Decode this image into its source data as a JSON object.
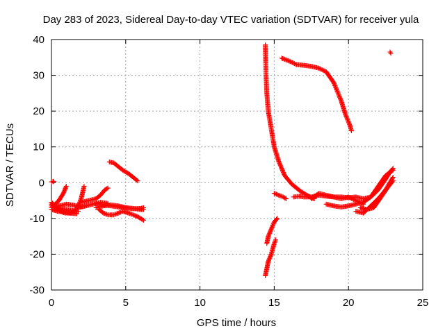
{
  "chart_data": {
    "type": "scatter",
    "title": "Day 283 of 2023, Sidereal Day-to-day VTEC variation (SDTVAR) for receiver yula",
    "xlabel": "GPS time / hours",
    "ylabel": "SDTVAR / TECUs",
    "xlim": [
      0,
      25
    ],
    "ylim": [
      -30,
      40
    ],
    "xticks": [
      "0",
      "5",
      "10",
      "15",
      "20",
      "25"
    ],
    "yticks": [
      "-30",
      "-20",
      "-10",
      "0",
      "10",
      "20",
      "30",
      "40"
    ],
    "grid": true,
    "marker": "+",
    "color": "#ff0000",
    "series": [
      {
        "segments": [
          [
            [
              0.0,
              -5.5
            ],
            [
              0.2,
              -6.2
            ],
            [
              0.5,
              -5.0
            ],
            [
              0.8,
              -3.0
            ],
            [
              1.0,
              -1.0
            ]
          ],
          [
            [
              0.0,
              -6.5
            ],
            [
              0.5,
              -7.2
            ],
            [
              1.0,
              -7.5
            ],
            [
              1.5,
              -7.8
            ],
            [
              1.8,
              -8.0
            ]
          ],
          [
            [
              0.0,
              -7.5
            ],
            [
              0.4,
              -8.0
            ],
            [
              0.8,
              -8.2
            ],
            [
              1.2,
              -8.5
            ],
            [
              1.7,
              -8.7
            ]
          ],
          [
            [
              0.0,
              -6.0
            ],
            [
              0.3,
              -7.0
            ],
            [
              0.6,
              -8.0
            ],
            [
              0.9,
              -8.5
            ],
            [
              1.3,
              -8.5
            ],
            [
              1.6,
              -7.8
            ],
            [
              1.8,
              -6.5
            ],
            [
              2.0,
              -4.5
            ],
            [
              2.2,
              -1.0
            ]
          ],
          [
            [
              0.0,
              -7.0
            ],
            [
              0.5,
              -6.5
            ],
            [
              1.0,
              -6.0
            ],
            [
              1.5,
              -6.3
            ],
            [
              2.0,
              -6.8
            ],
            [
              2.3,
              -6.5
            ]
          ],
          [
            [
              2.0,
              -5.5
            ],
            [
              2.5,
              -5.0
            ],
            [
              3.0,
              -4.5
            ],
            [
              3.3,
              -3.5
            ],
            [
              3.6,
              -2.0
            ],
            [
              3.8,
              -1.5
            ]
          ],
          [
            [
              1.8,
              -7.0
            ],
            [
              2.3,
              -6.5
            ],
            [
              2.8,
              -6.0
            ],
            [
              3.3,
              -5.5
            ],
            [
              3.8,
              -5.8
            ]
          ],
          [
            [
              0.0,
              0.2
            ],
            [
              0.1,
              0.4
            ],
            [
              0.15,
              0.3
            ]
          ],
          [
            [
              3.0,
              -7.0
            ],
            [
              3.5,
              -6.5
            ],
            [
              4.0,
              -6.2
            ],
            [
              4.5,
              -6.5
            ],
            [
              5.0,
              -7.0
            ],
            [
              5.5,
              -7.3
            ],
            [
              6.0,
              -7.2
            ],
            [
              6.2,
              -7.0
            ]
          ],
          [
            [
              3.0,
              -6.0
            ],
            [
              3.5,
              -6.2
            ],
            [
              4.0,
              -6.5
            ],
            [
              4.5,
              -6.8
            ],
            [
              5.0,
              -7.0
            ],
            [
              5.5,
              -7.2
            ],
            [
              6.0,
              -7.5
            ],
            [
              6.2,
              -7.5
            ]
          ],
          [
            [
              3.2,
              -7.5
            ],
            [
              3.5,
              -8.5
            ],
            [
              3.8,
              -9.0
            ],
            [
              4.2,
              -9.0
            ],
            [
              4.5,
              -8.5
            ],
            [
              4.8,
              -8.0
            ],
            [
              5.2,
              -8.5
            ],
            [
              5.5,
              -9.0
            ],
            [
              5.8,
              -9.5
            ],
            [
              6.2,
              -10.5
            ]
          ],
          [
            [
              3.9,
              5.8
            ],
            [
              4.2,
              5.5
            ],
            [
              4.5,
              4.5
            ],
            [
              4.8,
              3.5
            ],
            [
              5.2,
              2.5
            ],
            [
              5.5,
              1.5
            ],
            [
              5.8,
              0.5
            ]
          ],
          [
            [
              14.4,
              38.5
            ],
            [
              14.45,
              30.0
            ],
            [
              14.5,
              25.0
            ],
            [
              14.6,
              20.0
            ],
            [
              14.8,
              15.0
            ],
            [
              15.0,
              10.0
            ],
            [
              15.3,
              6.0
            ],
            [
              15.7,
              2.0
            ],
            [
              16.2,
              -0.5
            ],
            [
              16.8,
              -2.5
            ],
            [
              17.2,
              -3.5
            ],
            [
              17.5,
              -4.2
            ],
            [
              17.7,
              -4.5
            ]
          ],
          [
            [
              14.5,
              -17.0
            ],
            [
              14.6,
              -15.0
            ],
            [
              14.8,
              -13.0
            ],
            [
              15.0,
              -11.0
            ],
            [
              15.2,
              -10.0
            ]
          ],
          [
            [
              14.4,
              -26.0
            ],
            [
              14.5,
              -24.0
            ],
            [
              14.6,
              -22.0
            ],
            [
              14.8,
              -20.0
            ],
            [
              15.0,
              -17.0
            ],
            [
              15.1,
              -16.0
            ]
          ],
          [
            [
              15.5,
              34.8
            ],
            [
              16.0,
              34.0
            ],
            [
              16.5,
              33.0
            ],
            [
              17.0,
              32.8
            ],
            [
              17.5,
              32.5
            ],
            [
              18.0,
              32.0
            ],
            [
              18.5,
              31.0
            ],
            [
              19.0,
              28.0
            ],
            [
              19.5,
              23.0
            ],
            [
              19.8,
              19.0
            ],
            [
              20.1,
              16.0
            ],
            [
              20.2,
              14.5
            ]
          ],
          [
            [
              15.0,
              -3.0
            ],
            [
              15.3,
              -3.5
            ],
            [
              15.6,
              -4.0
            ],
            [
              15.8,
              -4.5
            ]
          ],
          [
            [
              16.3,
              -4.0
            ],
            [
              16.7,
              -3.8
            ],
            [
              17.0,
              -4.0
            ],
            [
              17.5,
              -4.0
            ],
            [
              18.0,
              -3.5
            ],
            [
              18.5,
              -3.8
            ],
            [
              19.0,
              -4.0
            ],
            [
              19.5,
              -4.0
            ],
            [
              20.0,
              -4.2
            ],
            [
              20.5,
              -4.0
            ],
            [
              21.0,
              -4.5
            ],
            [
              21.5,
              -4.0
            ],
            [
              22.0,
              -2.0
            ],
            [
              22.5,
              1.0
            ],
            [
              22.8,
              3.0
            ],
            [
              23.0,
              4.0
            ]
          ],
          [
            [
              17.5,
              -4.5
            ],
            [
              18.0,
              -3.0
            ],
            [
              18.5,
              -3.5
            ],
            [
              19.0,
              -4.0
            ],
            [
              19.5,
              -4.5
            ],
            [
              20.0,
              -4.0
            ],
            [
              20.5,
              -5.0
            ],
            [
              21.0,
              -6.0
            ]
          ],
          [
            [
              18.5,
              -6.0
            ],
            [
              19.0,
              -6.5
            ],
            [
              19.5,
              -6.8
            ],
            [
              20.0,
              -6.5
            ],
            [
              20.5,
              -6.0
            ],
            [
              21.0,
              -5.5
            ],
            [
              21.5,
              -4.0
            ],
            [
              22.0,
              -1.0
            ],
            [
              22.5,
              2.0
            ],
            [
              23.0,
              3.5
            ]
          ],
          [
            [
              20.5,
              -8.0
            ],
            [
              21.0,
              -8.5
            ],
            [
              21.5,
              -6.5
            ],
            [
              22.0,
              -4.5
            ],
            [
              22.5,
              -2.0
            ],
            [
              23.0,
              1.5
            ]
          ],
          [
            [
              20.8,
              -7.0
            ],
            [
              21.2,
              -7.5
            ],
            [
              21.7,
              -7.0
            ],
            [
              22.2,
              -4.0
            ],
            [
              22.7,
              -1.0
            ],
            [
              23.0,
              0.5
            ]
          ],
          [
            [
              22.8,
              36.5
            ],
            [
              22.85,
              36.2
            ]
          ]
        ]
      }
    ]
  }
}
